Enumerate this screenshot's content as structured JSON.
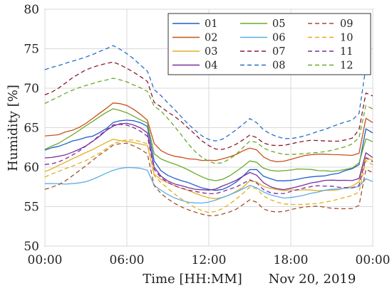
{
  "chart_data": {
    "type": "line",
    "xlabel": "Time [HH:MM]",
    "ylabel": "Humidity [%]",
    "date_note": "Nov 20, 2019",
    "x_unit": "hours",
    "xlim": [
      0,
      24
    ],
    "ylim": [
      50,
      80
    ],
    "xticks": [
      0,
      6,
      12,
      18,
      24
    ],
    "xtick_labels": [
      "00:00",
      "06:00",
      "12:00",
      "18:00",
      "00:00"
    ],
    "yticks": [
      50,
      55,
      60,
      65,
      70,
      75,
      80
    ],
    "ytick_labels": [
      "50",
      "55",
      "60",
      "65",
      "70",
      "75",
      "80"
    ],
    "grid": true,
    "legend": {
      "placement": "top-right",
      "columns": 3
    },
    "x": [
      0,
      0.5,
      1,
      1.5,
      2,
      2.5,
      3,
      3.5,
      4,
      4.5,
      5,
      5.5,
      6,
      6.5,
      7,
      7.5,
      8,
      8.5,
      9,
      9.5,
      10,
      10.5,
      11,
      11.5,
      12,
      12.5,
      13,
      13.5,
      14,
      14.5,
      15,
      15.5,
      16,
      16.5,
      17,
      17.5,
      18,
      18.5,
      19,
      19.5,
      20,
      20.5,
      21,
      21.5,
      22,
      22.5,
      23,
      23.5,
      24
    ],
    "series": [
      {
        "name": "01",
        "color": "#1f5fc8",
        "dash": "solid",
        "values": [
          62,
          62.2,
          62.3,
          62.6,
          63,
          63.3,
          63.7,
          64,
          64.6,
          65.2,
          66,
          66.2,
          66.2,
          66,
          65.6,
          65,
          60.5,
          59.2,
          58.6,
          58.3,
          58.1,
          58,
          57.8,
          57.6,
          57.5,
          57.4,
          57.5,
          57.8,
          58.2,
          58.8,
          59.5,
          59.4,
          58.5,
          58.2,
          58,
          58.1,
          58.3,
          58.6,
          58.9,
          59.1,
          59.2,
          59.2,
          59.3,
          59.3,
          59.5,
          59.6,
          60,
          64.5,
          64
        ]
      },
      {
        "name": "02",
        "color": "#c8501a",
        "dash": "solid",
        "values": [
          64,
          64.2,
          64.4,
          64.8,
          65,
          65.3,
          65.7,
          66.2,
          66.7,
          67.2,
          67.8,
          67.7,
          67.5,
          67.1,
          66.6,
          66,
          63.2,
          62.4,
          62,
          61.7,
          61.5,
          61.2,
          61,
          60.7,
          60.6,
          60.5,
          60.7,
          61,
          61.4,
          62,
          62.5,
          62.4,
          61.6,
          61.2,
          61,
          61,
          61.1,
          61.2,
          61.3,
          61.3,
          61.3,
          61.3,
          61.3,
          61.4,
          61.5,
          61.6,
          62,
          66.5,
          66
        ]
      },
      {
        "name": "03",
        "color": "#e0b020",
        "dash": "solid",
        "values": [
          59.5,
          59.7,
          60,
          60.3,
          60.7,
          61.1,
          61.6,
          62.1,
          62.7,
          63.3,
          63.8,
          63.7,
          63.6,
          63.4,
          63.1,
          62.8,
          59,
          58.2,
          57.7,
          57.3,
          57,
          56.8,
          56.6,
          56.4,
          56.3,
          56.3,
          56.5,
          56.8,
          57.2,
          57.6,
          58.3,
          58,
          57.3,
          57,
          56.8,
          56.7,
          56.9,
          57,
          57.2,
          57.3,
          57.3,
          57.4,
          57.4,
          57.4,
          57.5,
          57.6,
          58,
          61,
          60.5
        ]
      },
      {
        "name": "04",
        "color": "#7b2d9e",
        "dash": "solid",
        "values": [
          61,
          61.2,
          61.5,
          61.8,
          62.2,
          62.6,
          63,
          63.5,
          64,
          64.6,
          65,
          65.2,
          65.2,
          65,
          64.7,
          64.2,
          60,
          59,
          58.5,
          58.2,
          58,
          57.7,
          57.4,
          57.2,
          57,
          57,
          57.3,
          57.6,
          58,
          58.6,
          59.2,
          59,
          58.2,
          57.8,
          57.6,
          57.5,
          57.6,
          57.7,
          57.8,
          57.9,
          57.9,
          58,
          58,
          58,
          58.1,
          58.2,
          58.6,
          62,
          61.5
        ]
      },
      {
        "name": "05",
        "color": "#6aaa2a",
        "dash": "solid",
        "values": [
          62.5,
          62.8,
          63,
          63.4,
          63.8,
          64.3,
          64.9,
          65.5,
          66.2,
          66.9,
          67.5,
          67.4,
          67.2,
          66.8,
          66.3,
          65.8,
          61.8,
          61,
          60.5,
          60.1,
          59.7,
          59.3,
          58.9,
          58.6,
          58.4,
          58.4,
          58.7,
          59.2,
          59.8,
          60.4,
          61,
          60.7,
          59.8,
          59.4,
          59.2,
          59.2,
          59.3,
          59.5,
          59.6,
          59.7,
          59.7,
          59.8,
          59.8,
          59.9,
          60,
          60.1,
          60.6,
          63.5,
          63
        ]
      },
      {
        "name": "06",
        "color": "#5aaee8",
        "dash": "solid",
        "values": [
          57.6,
          57.7,
          57.8,
          57.9,
          58.1,
          58.3,
          58.5,
          58.8,
          59.1,
          59.4,
          59.6,
          59.7,
          59.7,
          59.6,
          59.5,
          59.3,
          57.5,
          57,
          56.6,
          56.3,
          56.1,
          55.9,
          55.8,
          55.7,
          55.7,
          55.8,
          56,
          56.2,
          56.5,
          56.9,
          57.4,
          57.2,
          56.8,
          56.6,
          56.5,
          56.4,
          56.5,
          56.6,
          56.7,
          56.8,
          56.8,
          56.9,
          56.9,
          56.9,
          57,
          57.1,
          57.4,
          58.5,
          58.3
        ]
      },
      {
        "name": "07",
        "color": "#8b1a2e",
        "dash": "dashed",
        "values": [
          69.5,
          69.8,
          70.2,
          70.7,
          71.2,
          71.6,
          72,
          72.3,
          72.6,
          72.9,
          73.2,
          73,
          72.7,
          72.3,
          71.8,
          71.2,
          68.5,
          67.8,
          67,
          66.3,
          65.5,
          64.6,
          63.8,
          63,
          62.5,
          62.2,
          62.3,
          62.7,
          63.2,
          63.8,
          64.4,
          64,
          63.2,
          62.8,
          62.6,
          62.5,
          62.6,
          62.8,
          63,
          63.2,
          63.3,
          63.4,
          63.5,
          63.6,
          63.8,
          64,
          65,
          69.5,
          69
        ]
      },
      {
        "name": "08",
        "color": "#2a6ec8",
        "dash": "dashed",
        "values": [
          72,
          72.3,
          72.6,
          73,
          73.4,
          73.8,
          74.2,
          74.6,
          75,
          75.3,
          75.6,
          75,
          74.3,
          73.5,
          72.6,
          71.8,
          69.5,
          68.8,
          68,
          67.3,
          66.5,
          65.7,
          65,
          64.3,
          63.8,
          63.5,
          63.6,
          64,
          64.5,
          65.1,
          65.8,
          65.3,
          64.5,
          64.1,
          63.9,
          63.8,
          63.9,
          64.1,
          64.3,
          64.5,
          64.7,
          64.8,
          65,
          65.2,
          65.4,
          65.6,
          66.5,
          72.5,
          72
        ]
      },
      {
        "name": "09",
        "color": "#a0522d",
        "dash": "dashed",
        "values": [
          57.5,
          57.8,
          58.1,
          58.5,
          59,
          59.5,
          60,
          60.6,
          61.2,
          61.8,
          62.5,
          62.8,
          63,
          62.8,
          62.5,
          62,
          58,
          57,
          56.2,
          55.5,
          54.9,
          54.4,
          54,
          53.7,
          53.5,
          53.6,
          53.9,
          54.3,
          54.8,
          55.5,
          56.2,
          55.9,
          55,
          54.6,
          54.4,
          54.3,
          54.4,
          54.5,
          54.6,
          54.7,
          54.8,
          54.8,
          54.8,
          54.9,
          55,
          55.1,
          55.5,
          60,
          59.5
        ]
      },
      {
        "name": "10",
        "color": "#e0b020",
        "dash": "dashed",
        "values": [
          58.5,
          58.8,
          59.1,
          59.5,
          59.9,
          60.4,
          60.9,
          61.5,
          62.1,
          62.7,
          63.3,
          63.5,
          63.6,
          63.4,
          63.1,
          62.7,
          58.6,
          57.7,
          57,
          56.4,
          55.9,
          55.5,
          55.1,
          54.8,
          54.6,
          54.7,
          55,
          55.4,
          55.9,
          56.5,
          57.2,
          56.9,
          56,
          55.6,
          55.4,
          55.3,
          55.4,
          55.5,
          55.6,
          55.7,
          55.7,
          55.8,
          55.8,
          55.9,
          56,
          56.1,
          56.5,
          60.5,
          60
        ]
      },
      {
        "name": "11",
        "color": "#7b2d9e",
        "dash": "dashed",
        "values": [
          60.5,
          60.7,
          61,
          61.4,
          61.8,
          62.2,
          62.7,
          63.2,
          63.8,
          64.4,
          65,
          65.1,
          65.1,
          64.9,
          64.6,
          64.1,
          60,
          59,
          58.4,
          57.9,
          57.5,
          57.1,
          56.8,
          56.5,
          56.3,
          56.3,
          56.6,
          57,
          57.4,
          58,
          58.6,
          58.3,
          57.5,
          57.1,
          56.9,
          56.8,
          56.9,
          57,
          57.1,
          57.2,
          57.3,
          57.3,
          57.4,
          57.4,
          57.5,
          57.6,
          58,
          61.5,
          61
        ]
      },
      {
        "name": "12",
        "color": "#6aaa2a",
        "dash": "dashed",
        "values": [
          68,
          68.3,
          68.6,
          69,
          69.4,
          69.8,
          70.2,
          70.6,
          71,
          71.3,
          71.6,
          71.4,
          71.1,
          70.6,
          70.1,
          69.5,
          67.5,
          66.8,
          65.8,
          64.8,
          63.8,
          62.8,
          62,
          61.4,
          61,
          60.8,
          60.9,
          61.3,
          61.8,
          62.5,
          63.2,
          62.9,
          62.1,
          61.7,
          61.5,
          61.4,
          61.5,
          61.7,
          61.9,
          62.1,
          62.2,
          62.3,
          62.4,
          62.5,
          62.6,
          62.8,
          63.5,
          67.5,
          67
        ]
      }
    ]
  }
}
